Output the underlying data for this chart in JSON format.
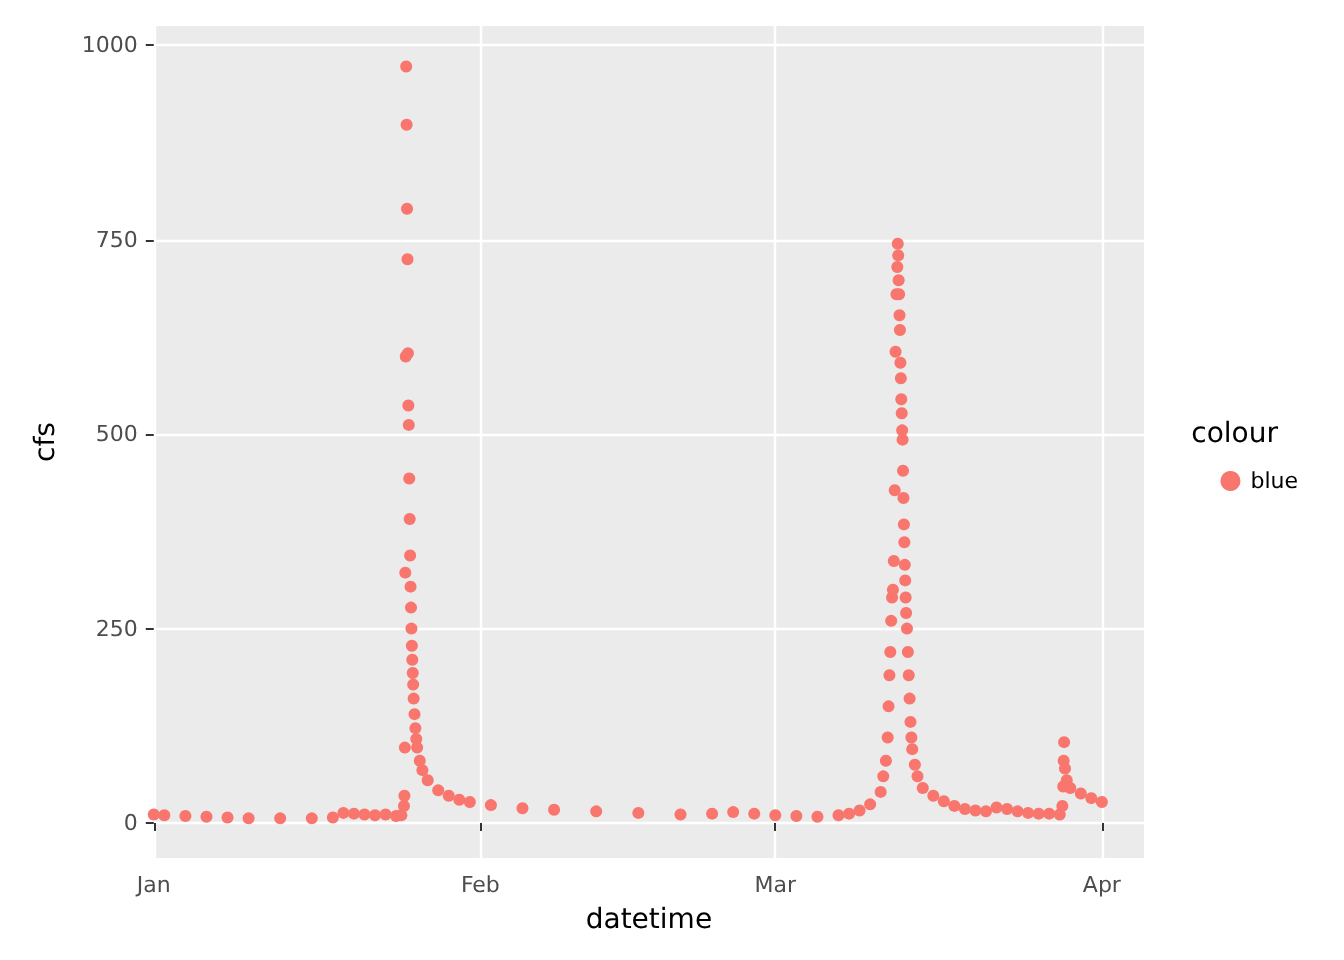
{
  "chart_data": {
    "type": "scatter",
    "xlabel": "datetime",
    "ylabel": "cfs",
    "legend_title": "colour",
    "legend": "right",
    "grid": true,
    "marker": "circle",
    "xlim": [
      "--01-01",
      "--04-05"
    ],
    "xticks": [
      {
        "value": "--01-01",
        "label": "Jan"
      },
      {
        "value": "--02-01",
        "label": "Feb"
      },
      {
        "value": "--03-01",
        "label": "Mar"
      },
      {
        "value": "--04-01",
        "label": "Apr"
      }
    ],
    "ylim": [
      -45,
      1025
    ],
    "yticks": [
      0,
      250,
      500,
      750,
      1000
    ],
    "series": [
      {
        "name": "blue",
        "color": "#f8766d",
        "x": [
          "--01-01",
          "--01-02",
          "--01-04",
          "--01-06",
          "--01-08",
          "--01-10",
          "--01-13",
          "--01-16",
          "--01-18",
          "--01-19",
          "--01-20",
          "--01-21",
          "--01-22",
          "--01-23",
          "--01-24T00:00",
          "--01-24T12:00",
          "--01-24T18:00",
          "--01-24T19:00",
          "--01-24T20:00",
          "--01-24T21:00",
          "--01-24T22:00",
          "--01-24T23:00",
          "--01-25T00:00",
          "--01-25T01:00",
          "--01-25T02:00",
          "--01-25T03:00",
          "--01-25T04:00",
          "--01-25T05:00",
          "--01-25T06:00",
          "--01-25T07:00",
          "--01-25T08:00",
          "--01-25T09:00",
          "--01-25T10:00",
          "--01-25T11:00",
          "--01-25T12:00",
          "--01-25T13:00",
          "--01-25T14:00",
          "--01-25T15:00",
          "--01-25T16:00",
          "--01-25T18:00",
          "--01-25T20:00",
          "--01-25T22:00",
          "--01-26T00:00",
          "--01-26T06:00",
          "--01-26T12:00",
          "--01-27",
          "--01-28",
          "--01-29",
          "--01-30",
          "--01-31",
          "--02-02",
          "--02-05",
          "--02-08",
          "--02-12",
          "--02-16",
          "--02-20",
          "--02-23",
          "--02-25",
          "--02-27",
          "--03-01",
          "--03-03",
          "--03-05",
          "--03-07",
          "--03-08",
          "--03-09",
          "--03-10",
          "--03-11T00:00",
          "--03-11T06:00",
          "--03-11T12:00",
          "--03-11T16:00",
          "--03-11T18:00",
          "--03-11T20:00",
          "--03-11T22:00",
          "--03-12T00:00",
          "--03-12T02:00",
          "--03-12T04:00",
          "--03-12T06:00",
          "--03-12T08:00",
          "--03-12T10:00",
          "--03-12T12:00",
          "--03-12T14:00",
          "--03-12T15:00",
          "--03-12T16:00",
          "--03-12T17:00",
          "--03-12T18:00",
          "--03-12T19:00",
          "--03-12T20:00",
          "--03-12T21:00",
          "--03-12T22:00",
          "--03-12T23:00",
          "--03-13T00:00",
          "--03-13T01:00",
          "--03-13T02:00",
          "--03-13T03:00",
          "--03-13T04:00",
          "--03-13T05:00",
          "--03-13T06:00",
          "--03-13T07:00",
          "--03-13T08:00",
          "--03-13T09:00",
          "--03-13T10:00",
          "--03-13T12:00",
          "--03-13T14:00",
          "--03-13T16:00",
          "--03-13T18:00",
          "--03-13T20:00",
          "--03-13T22:00",
          "--03-14T00:00",
          "--03-14T06:00",
          "--03-14T12:00",
          "--03-15",
          "--03-16",
          "--03-17",
          "--03-18",
          "--03-19",
          "--03-20",
          "--03-21",
          "--03-22",
          "--03-23",
          "--03-24",
          "--03-25",
          "--03-26",
          "--03-27",
          "--03-28T00:00",
          "--03-28T06:00",
          "--03-28T08:00",
          "--03-28T09:00",
          "--03-28T10:00",
          "--03-28T12:00",
          "--03-28T16:00",
          "--03-29",
          "--03-30",
          "--03-31",
          "--04-01"
        ],
        "values": [
          11,
          10,
          9,
          8,
          7,
          6,
          6,
          6,
          7,
          13,
          12,
          11,
          10,
          11,
          9,
          10,
          22,
          35,
          97,
          322,
          600,
          973,
          898,
          790,
          725,
          604,
          537,
          512,
          443,
          391,
          344,
          304,
          277,
          250,
          228,
          210,
          193,
          178,
          160,
          140,
          122,
          108,
          97,
          80,
          68,
          55,
          42,
          35,
          30,
          27,
          23,
          19,
          17,
          15,
          13,
          11,
          12,
          14,
          12,
          10,
          9,
          8,
          10,
          12,
          16,
          24,
          40,
          60,
          80,
          110,
          150,
          190,
          220,
          260,
          290,
          300,
          337,
          428,
          606,
          680,
          715,
          745,
          730,
          698,
          680,
          653,
          634,
          592,
          572,
          545,
          527,
          505,
          493,
          453,
          418,
          384,
          361,
          332,
          312,
          290,
          270,
          250,
          220,
          190,
          160,
          130,
          110,
          95,
          75,
          60,
          45,
          35,
          28,
          22,
          18,
          16,
          15,
          20,
          18,
          15,
          13,
          12,
          12,
          11,
          22,
          47,
          80,
          104,
          70,
          55,
          45,
          38,
          32,
          27
        ]
      }
    ]
  }
}
